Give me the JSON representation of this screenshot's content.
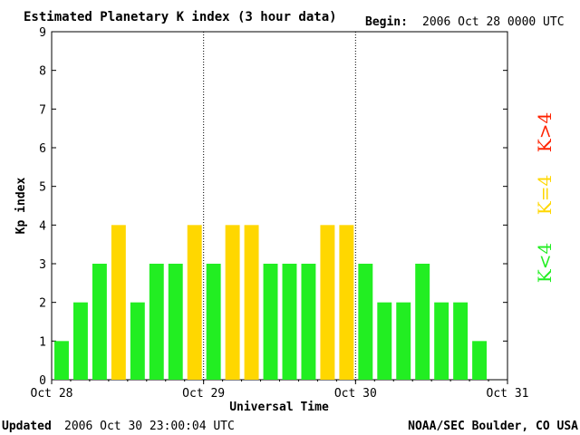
{
  "header": {
    "title": "Estimated Planetary K index (3 hour data)",
    "begin_label": "Begin:",
    "begin_value": "2006 Oct 28 0000 UTC"
  },
  "footer": {
    "updated_label": "Updated",
    "updated_value": "2006 Oct 30 23:00:04 UTC",
    "source": "NOAA/SEC Boulder, CO USA"
  },
  "legend": [
    {
      "label": "K<4",
      "color": "#22ee22"
    },
    {
      "label": "K=4",
      "color": "#ffd700"
    },
    {
      "label": "K>4",
      "color": "#ff2200"
    }
  ],
  "chart_data": {
    "type": "bar",
    "title": "Estimated Planetary K index (3 hour data)",
    "xlabel": "Universal Time",
    "ylabel": "Kp index",
    "ylim": [
      0,
      9
    ],
    "yticks": [
      "0",
      "1",
      "2",
      "3",
      "4",
      "5",
      "6",
      "7",
      "8",
      "9"
    ],
    "xticks": [
      "Oct 28",
      "Oct 29",
      "Oct 30",
      "Oct 31"
    ],
    "day_separators": [
      "Oct 29",
      "Oct 30"
    ],
    "bars_per_day": 8,
    "values": [
      1,
      2,
      3,
      4,
      2,
      3,
      3,
      4,
      3,
      4,
      4,
      3,
      3,
      3,
      4,
      4,
      3,
      2,
      2,
      3,
      2,
      2,
      1
    ],
    "colors": {
      "below4": "#22ee22",
      "equal4": "#ffd700",
      "above4": "#ff2200"
    }
  }
}
